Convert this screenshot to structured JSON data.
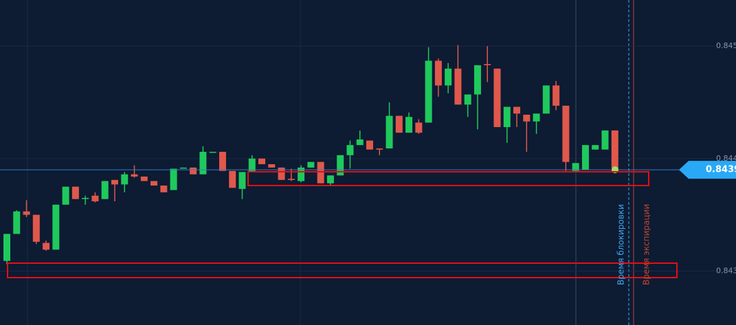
{
  "chart_data": {
    "type": "candlestick",
    "open": [
      0.84309,
      0.84333,
      0.84353,
      0.8435,
      0.84325,
      0.84319,
      0.84359,
      0.84375,
      0.84364,
      0.84367,
      0.84364,
      0.84381,
      0.84377,
      0.84386,
      0.84384,
      0.8438,
      0.84376,
      0.84372,
      0.84391,
      0.84392,
      0.84386,
      0.84406,
      0.84406,
      0.84389,
      0.84373,
      0.84388,
      0.844,
      0.84395,
      0.84392,
      0.84382,
      0.8438,
      0.84392,
      0.84397,
      0.84378,
      0.84385,
      0.84403,
      0.84412,
      0.84416,
      0.84409,
      0.84409,
      0.84438,
      0.84423,
      0.84432,
      0.84432,
      0.84487,
      0.84465,
      0.8448,
      0.84448,
      0.84457,
      0.84484,
      0.8448,
      0.84428,
      0.84446,
      0.84439,
      0.84433,
      0.8444,
      0.84465,
      0.84447,
      0.84389,
      0.8439,
      0.84408,
      0.84408,
      0.84425
    ],
    "high": [
      0.84333,
      0.84354,
      0.84363,
      0.8435,
      0.84327,
      0.84359,
      0.84375,
      0.84375,
      0.84367,
      0.8437,
      0.8438,
      0.84381,
      0.84388,
      0.84394,
      0.84384,
      0.8438,
      0.84376,
      0.84391,
      0.84392,
      0.84392,
      0.84411,
      0.84406,
      0.84406,
      0.84389,
      0.84388,
      0.84403,
      0.844,
      0.84395,
      0.84392,
      0.84391,
      0.84394,
      0.84397,
      0.84397,
      0.84385,
      0.84403,
      0.84416,
      0.84425,
      0.84416,
      0.84409,
      0.8445,
      0.84438,
      0.84441,
      0.84435,
      0.84499,
      0.84489,
      0.84485,
      0.84501,
      0.84457,
      0.84483,
      0.845,
      0.8448,
      0.84446,
      0.84446,
      0.84439,
      0.8444,
      0.84465,
      0.84469,
      0.84447,
      0.84396,
      0.84412,
      0.84412,
      0.84425,
      0.84425
    ],
    "low": [
      0.84306,
      0.84333,
      0.84348,
      0.84324,
      0.84318,
      0.84319,
      0.84359,
      0.84364,
      0.84359,
      0.84361,
      0.84364,
      0.84362,
      0.8437,
      0.84383,
      0.8438,
      0.84376,
      0.8437,
      0.84372,
      0.84391,
      0.84386,
      0.84386,
      0.84406,
      0.84389,
      0.84374,
      0.84364,
      0.84388,
      0.84395,
      0.84392,
      0.84381,
      0.8438,
      0.84379,
      0.84392,
      0.84378,
      0.84376,
      0.84385,
      0.84391,
      0.84412,
      0.84408,
      0.84403,
      0.84409,
      0.84423,
      0.84423,
      0.84422,
      0.84432,
      0.84455,
      0.84458,
      0.84448,
      0.84437,
      0.84426,
      0.84468,
      0.84428,
      0.84414,
      0.84428,
      0.84406,
      0.84422,
      0.8444,
      0.84443,
      0.84389,
      0.84389,
      0.8439,
      0.84408,
      0.84408,
      0.84391
    ],
    "close": [
      0.84333,
      0.84353,
      0.8435,
      0.84326,
      0.84319,
      0.84359,
      0.84375,
      0.84364,
      0.84365,
      0.84362,
      0.8438,
      0.84377,
      0.84386,
      0.84384,
      0.8438,
      0.84376,
      0.8437,
      0.84391,
      0.84392,
      0.84386,
      0.84406,
      0.84406,
      0.84389,
      0.84374,
      0.84388,
      0.844,
      0.84395,
      0.84392,
      0.84381,
      0.84381,
      0.84392,
      0.84397,
      0.84378,
      0.84385,
      0.84403,
      0.84412,
      0.84417,
      0.84408,
      0.84408,
      0.84438,
      0.84423,
      0.84437,
      0.84423,
      0.84487,
      0.84465,
      0.8448,
      0.84448,
      0.84457,
      0.84483,
      0.84483,
      0.84428,
      0.84446,
      0.8444,
      0.84433,
      0.8444,
      0.84465,
      0.84447,
      0.84397,
      0.84396,
      0.84412,
      0.84412,
      0.84425,
      0.84391
    ],
    "up_color": "#1fc95c",
    "down_color": "#e0584b",
    "ylim": [
      0.84252,
      0.84541
    ],
    "yticks": [
      0.843,
      0.844,
      0.845
    ],
    "grid": true,
    "current_price": 0.8439,
    "lock_time_label": "Время блокировки",
    "expiry_time_label": "Время экспирации"
  }
}
